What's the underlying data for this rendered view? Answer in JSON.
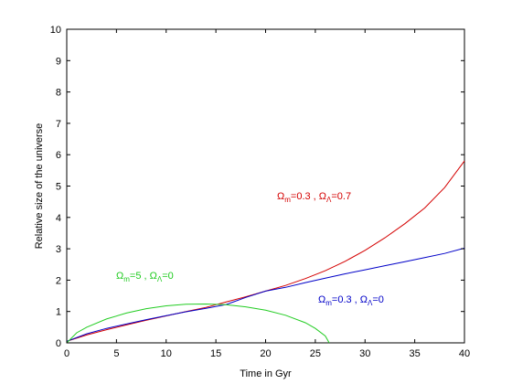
{
  "chart_data": {
    "type": "line",
    "title": "",
    "xlabel": "Time in Gyr",
    "ylabel": "Relative size of the universe",
    "xlim": [
      0,
      40
    ],
    "ylim": [
      0,
      10
    ],
    "xticks": [
      0,
      5,
      10,
      15,
      20,
      25,
      30,
      35,
      40
    ],
    "yticks": [
      0,
      1,
      2,
      3,
      4,
      5,
      6,
      7,
      8,
      9,
      10
    ],
    "grid": false,
    "series": [
      {
        "color": "#d40000",
        "x": [
          0,
          2,
          4,
          6,
          8,
          10,
          12,
          14,
          16,
          18,
          20,
          22,
          24,
          26,
          28,
          30,
          32,
          34,
          36,
          38,
          40
        ],
        "y": [
          0.05,
          0.25,
          0.42,
          0.57,
          0.72,
          0.86,
          1.0,
          1.13,
          1.3,
          1.47,
          1.65,
          1.83,
          2.05,
          2.3,
          2.6,
          2.95,
          3.35,
          3.8,
          4.3,
          4.95,
          5.8
        ],
        "label_parts": [
          {
            "t": "Ω",
            "sub": false
          },
          {
            "t": "m",
            "sub": true
          },
          {
            "t": "=0.3 , ",
            "sub": false
          },
          {
            "t": "Ω",
            "sub": false
          },
          {
            "t": "Λ",
            "sub": true
          },
          {
            "t": "=0.7",
            "sub": false
          }
        ]
      },
      {
        "color": "#0000c8",
        "x": [
          0,
          2,
          4,
          6,
          8,
          10,
          12,
          14,
          16,
          18,
          20,
          22,
          24,
          26,
          28,
          30,
          32,
          34,
          36,
          38,
          40
        ],
        "y": [
          0.05,
          0.29,
          0.46,
          0.6,
          0.74,
          0.87,
          0.99,
          1.1,
          1.22,
          1.45,
          1.65,
          1.77,
          1.92,
          2.06,
          2.2,
          2.33,
          2.46,
          2.59,
          2.72,
          2.85,
          3.02
        ],
        "label_parts": [
          {
            "t": "Ω",
            "sub": false
          },
          {
            "t": "m",
            "sub": true
          },
          {
            "t": "=0.3 , ",
            "sub": false
          },
          {
            "t": "Ω",
            "sub": false
          },
          {
            "t": "Λ",
            "sub": true
          },
          {
            "t": "=0",
            "sub": false
          }
        ]
      },
      {
        "color": "#22cc22",
        "x": [
          0,
          1,
          2,
          4,
          6,
          8,
          10,
          12,
          14,
          16,
          18,
          20,
          22,
          24,
          25,
          26,
          26.4
        ],
        "y": [
          0,
          0.32,
          0.5,
          0.76,
          0.95,
          1.09,
          1.18,
          1.23,
          1.24,
          1.22,
          1.15,
          1.04,
          0.88,
          0.64,
          0.46,
          0.22,
          0
        ],
        "label_parts": [
          {
            "t": "Ω",
            "sub": false
          },
          {
            "t": "m",
            "sub": true
          },
          {
            "t": "=5 , ",
            "sub": false
          },
          {
            "t": "Ω",
            "sub": false
          },
          {
            "t": "Λ",
            "sub": true
          },
          {
            "t": "=0",
            "sub": false
          }
        ]
      }
    ]
  }
}
